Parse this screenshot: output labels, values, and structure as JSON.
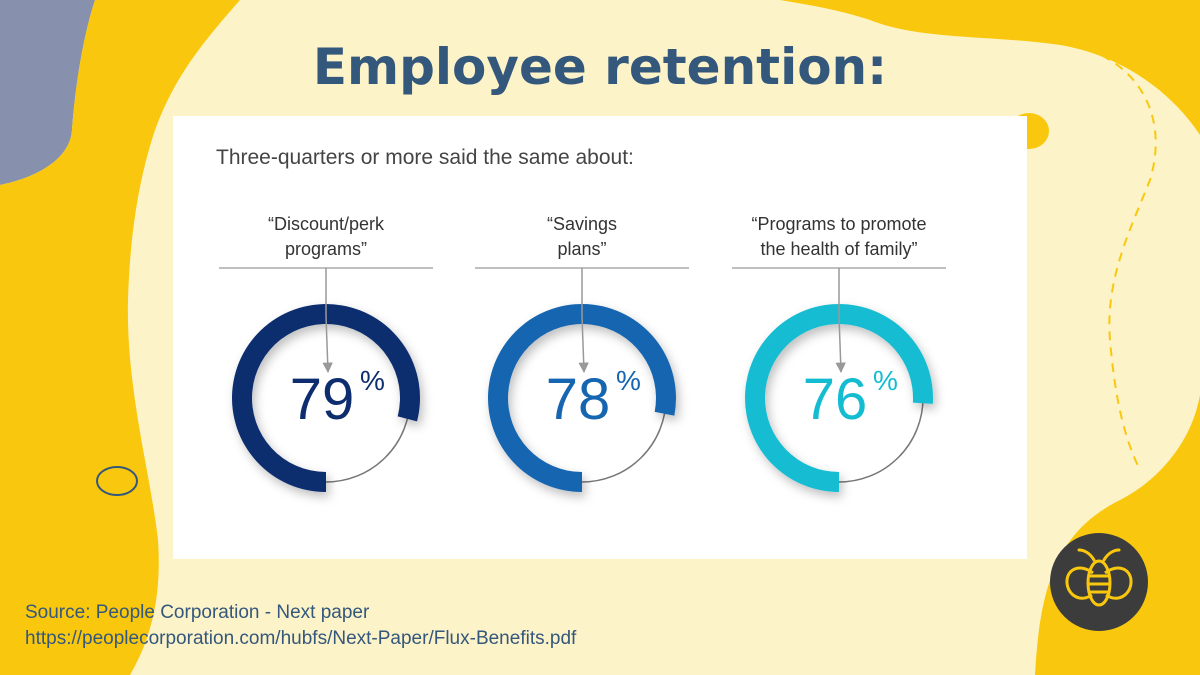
{
  "title": "Employee retention:",
  "colors": {
    "background": "#fdf3c9",
    "accent_yellow": "#f9c80e",
    "slate": "#8791ad",
    "title": "#34577c"
  },
  "chart_data": {
    "type": "donut",
    "subtitle": "Three-quarters or more said the same about:",
    "items": [
      {
        "label_lines": [
          "“Discount/perk",
          "programs”"
        ],
        "value": 79,
        "display": "79",
        "suffix": "%",
        "color": "#0d2d6e"
      },
      {
        "label_lines": [
          "“Savings",
          "plans”"
        ],
        "value": 78,
        "display": "78",
        "suffix": "%",
        "color": "#1565b0"
      },
      {
        "label_lines": [
          "“Programs to promote",
          "the health of family”"
        ],
        "value": 76,
        "display": "76",
        "suffix": "%",
        "color": "#14bcd2"
      }
    ]
  },
  "source": {
    "line1": "Source: People Corporation - Next paper",
    "line2": "https://peoplecorporation.com/hubfs/Next-Paper/Flux-Benefits.pdf"
  },
  "logo": {
    "icon": "bee-icon"
  }
}
